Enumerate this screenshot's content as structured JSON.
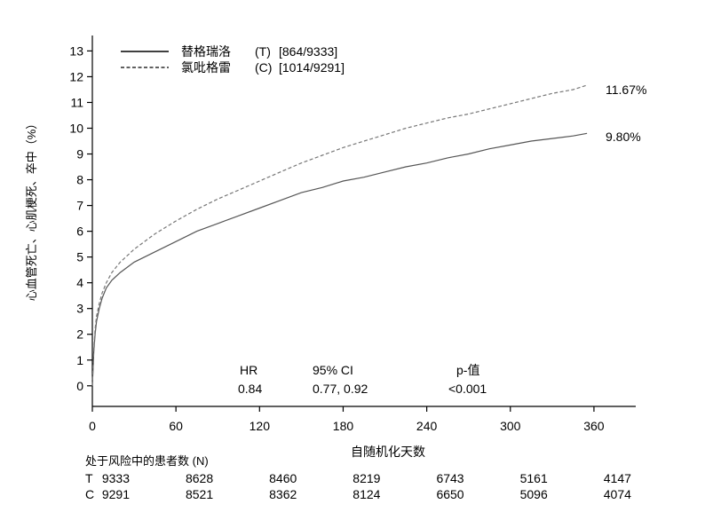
{
  "chart_data": {
    "type": "line",
    "xlabel": "自随机化天数",
    "ylabel": "心血管死亡、心肌梗死、卒中（%）",
    "xlim": [
      0,
      390
    ],
    "ylim": [
      -0.8,
      13.6
    ],
    "xticks": [
      0,
      60,
      120,
      180,
      240,
      300,
      360
    ],
    "yticks": [
      0,
      1,
      2,
      3,
      4,
      5,
      6,
      7,
      8,
      9,
      10,
      11,
      12,
      13
    ],
    "legend": {
      "position": "top-left",
      "entries": [
        {
          "name": "替格瑞洛",
          "code": "(T)",
          "counts": "[864/9333]",
          "style": "solid"
        },
        {
          "name": "氯吡格雷",
          "code": "(C)",
          "counts": "[1014/9291]",
          "style": "dashed"
        }
      ]
    },
    "series": [
      {
        "name": "替格瑞洛 (T)",
        "style": "solid",
        "end_label": "9.80%",
        "x": [
          0,
          1,
          2,
          3,
          5,
          7,
          10,
          14,
          20,
          30,
          45,
          60,
          75,
          90,
          105,
          120,
          135,
          150,
          165,
          180,
          195,
          210,
          225,
          240,
          255,
          270,
          285,
          300,
          315,
          330,
          345,
          355
        ],
        "y": [
          0,
          1.3,
          2.0,
          2.5,
          3.0,
          3.4,
          3.8,
          4.1,
          4.4,
          4.8,
          5.2,
          5.6,
          6.0,
          6.3,
          6.6,
          6.9,
          7.2,
          7.5,
          7.7,
          7.95,
          8.1,
          8.3,
          8.5,
          8.65,
          8.85,
          9.0,
          9.2,
          9.35,
          9.5,
          9.6,
          9.7,
          9.8
        ]
      },
      {
        "name": "氯吡格雷 (C)",
        "style": "dashed",
        "end_label": "11.67%",
        "x": [
          0,
          1,
          2,
          3,
          5,
          7,
          10,
          14,
          20,
          30,
          45,
          60,
          75,
          90,
          105,
          120,
          135,
          150,
          165,
          180,
          195,
          210,
          225,
          240,
          255,
          270,
          285,
          300,
          315,
          330,
          345,
          355
        ],
        "y": [
          0,
          1.4,
          2.2,
          2.7,
          3.2,
          3.6,
          4.0,
          4.4,
          4.8,
          5.3,
          5.9,
          6.4,
          6.85,
          7.25,
          7.6,
          7.95,
          8.3,
          8.65,
          8.95,
          9.25,
          9.5,
          9.75,
          10.0,
          10.2,
          10.4,
          10.55,
          10.75,
          10.95,
          11.15,
          11.35,
          11.5,
          11.67
        ]
      }
    ],
    "stats": {
      "hr_label": "HR",
      "hr_value": "0.84",
      "ci_label": "95% CI",
      "ci_value": "0.77, 0.92",
      "p_label": "p-值",
      "p_value": "<0.001"
    },
    "risk_table": {
      "title": "处于风险中的患者数 (N)",
      "rows": [
        {
          "group": "T",
          "values": [
            "9333",
            "8628",
            "8460",
            "8219",
            "6743",
            "5161",
            "4147"
          ]
        },
        {
          "group": "C",
          "values": [
            "9291",
            "8521",
            "8362",
            "8124",
            "6650",
            "5096",
            "4074"
          ]
        }
      ]
    }
  }
}
